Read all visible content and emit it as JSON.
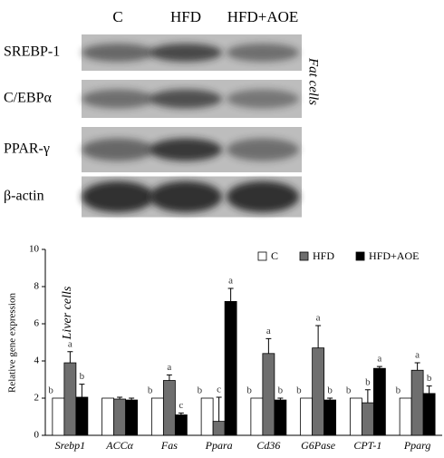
{
  "blot": {
    "lanes": [
      "C",
      "HFD",
      "HFD+AOE"
    ],
    "proteins": [
      "SREBP-1",
      "C/EBPα",
      "PPAR-γ",
      "β-actin"
    ],
    "cell_label": "Fat cells"
  },
  "chart_data": {
    "type": "bar",
    "ylabel": "Relative gene expression",
    "annotation": "Liver cells",
    "categories": [
      "Srebp1",
      "ACCα",
      "Fas",
      "Ppara",
      "Cd36",
      "G6Pase",
      "CPT-1",
      "Pparg"
    ],
    "series": [
      {
        "name": "C",
        "color": "#ffffff",
        "values": [
          2,
          2,
          2,
          2,
          2,
          2,
          2,
          2
        ],
        "letters": [
          "b",
          null,
          "b",
          "b",
          "b",
          "b",
          "b",
          "b"
        ]
      },
      {
        "name": "HFD",
        "color": "#6e6e6e",
        "values": [
          3.9,
          1.95,
          2.95,
          0.75,
          4.4,
          4.7,
          1.75,
          3.5
        ],
        "errors": [
          0.6,
          0.1,
          0.3,
          1.3,
          0.8,
          1.2,
          0.7,
          0.4
        ],
        "letters": [
          "a",
          null,
          "a",
          "c",
          "a",
          "a",
          "b",
          "a"
        ]
      },
      {
        "name": "HFD+AOE",
        "color": "#000000",
        "values": [
          2.05,
          1.9,
          1.1,
          7.2,
          1.9,
          1.9,
          3.6,
          2.25
        ],
        "errors": [
          0.7,
          0.1,
          0.1,
          0.7,
          0.1,
          0.1,
          0.1,
          0.4
        ],
        "letters": [
          "b",
          null,
          "c",
          "a",
          "b",
          "b",
          "a",
          "b"
        ]
      }
    ],
    "ylim": [
      0,
      10
    ],
    "yticks": [
      0,
      2,
      4,
      6,
      8,
      10
    ],
    "legend": "top-right"
  }
}
